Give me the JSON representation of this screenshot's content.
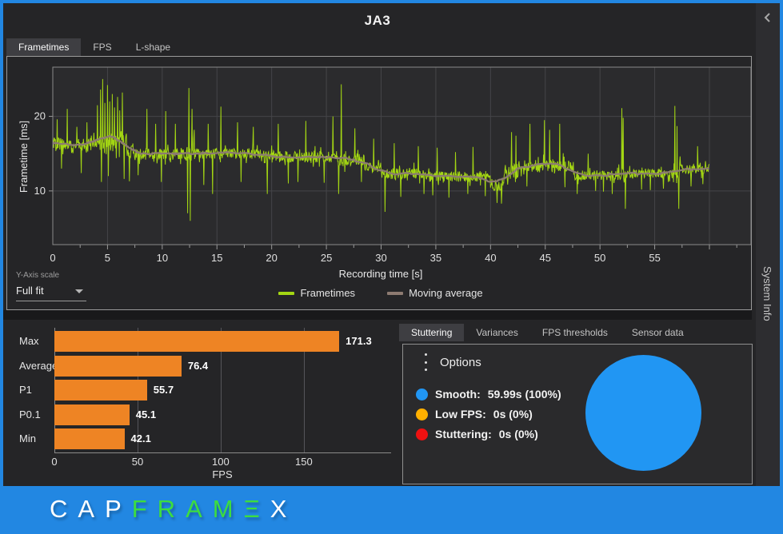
{
  "window": {
    "title": "JA3"
  },
  "top_tabs": {
    "items": [
      {
        "label": "Frametimes",
        "active": true
      },
      {
        "label": "FPS",
        "active": false
      },
      {
        "label": "L-shape",
        "active": false
      }
    ]
  },
  "yaxis_scale": {
    "label": "Y-Axis scale",
    "value": "Full fit"
  },
  "right_panel": {
    "tabs": [
      {
        "label": "Stuttering",
        "active": true
      },
      {
        "label": "Variances",
        "active": false
      },
      {
        "label": "FPS thresholds",
        "active": false
      },
      {
        "label": "Sensor data",
        "active": false
      }
    ],
    "options": {
      "title": "Options",
      "legend": [
        {
          "label": "Smooth:",
          "value": "59.99s (100%)",
          "color": "#2196f3"
        },
        {
          "label": "Low FPS:",
          "value": "0s (0%)",
          "color": "#ffb000"
        },
        {
          "label": "Stuttering:",
          "value": "0s (0%)",
          "color": "#ee1111"
        }
      ]
    }
  },
  "sidebar": {
    "label": "System Info"
  },
  "footer": {
    "logo_parts": [
      {
        "text": "CAP",
        "color": "#ffffff"
      },
      {
        "text": "FRAM",
        "color": "#3ddd3f"
      },
      {
        "text": "Ξ",
        "color": "#3ddd3f"
      },
      {
        "text": "X",
        "color": "#ffffff"
      }
    ]
  },
  "chart_data": [
    {
      "type": "line",
      "xlabel": "Recording time [s]",
      "ylabel": "Frametime [ms]",
      "xlim": [
        0,
        63.8
      ],
      "ylim": [
        2.8,
        26.6
      ],
      "xticks": [
        0,
        5,
        10,
        15,
        20,
        25,
        30,
        35,
        40,
        45,
        50,
        55
      ],
      "yticks": [
        10,
        20
      ],
      "grid": true,
      "legend_position": "bottom",
      "legend": [
        {
          "name": "Frametimes",
          "color": "#a3d613"
        },
        {
          "name": "Moving average",
          "color": "#8d7b71"
        }
      ],
      "series_model": {
        "duration": 59.99,
        "dt": 0.04,
        "ma_window": 31,
        "segments": [
          [
            3.5,
            16.2,
            0.9
          ],
          [
            6.8,
            16.6,
            1.3
          ],
          [
            7.3,
            15.3,
            0.8
          ],
          [
            12.2,
            14.9,
            0.8
          ],
          [
            13.0,
            15.2,
            1.1
          ],
          [
            19.0,
            15.0,
            0.7
          ],
          [
            26.0,
            14.6,
            0.8
          ],
          [
            28.5,
            14.2,
            0.9
          ],
          [
            30.0,
            13.0,
            0.8
          ],
          [
            34.0,
            12.3,
            0.8
          ],
          [
            40.0,
            11.9,
            0.7
          ],
          [
            41.2,
            10.7,
            0.7
          ],
          [
            42.6,
            12.6,
            1.0
          ],
          [
            47.6,
            13.4,
            0.9
          ],
          [
            51.6,
            12.1,
            0.7
          ],
          [
            52.4,
            12.4,
            1.2
          ],
          [
            56.6,
            12.3,
            0.6
          ],
          [
            57.4,
            12.6,
            1.1
          ],
          [
            60.1,
            12.9,
            0.7
          ]
        ],
        "spikes": [
          [
            0.4,
            19.6
          ],
          [
            0.8,
            13.0
          ],
          [
            1.3,
            21.0
          ],
          [
            2.2,
            18.6
          ],
          [
            2.6,
            12.4
          ],
          [
            3.1,
            19.2
          ],
          [
            4.1,
            21.5
          ],
          [
            4.35,
            23.6
          ],
          [
            4.45,
            11.2
          ],
          [
            4.55,
            25.0
          ],
          [
            4.75,
            21.8
          ],
          [
            5.0,
            24.2
          ],
          [
            5.1,
            12.0
          ],
          [
            5.2,
            22.0
          ],
          [
            5.45,
            23.0
          ],
          [
            5.65,
            21.2
          ],
          [
            5.9,
            22.6
          ],
          [
            6.1,
            20.8
          ],
          [
            6.35,
            23.2
          ],
          [
            6.5,
            11.6
          ],
          [
            7.0,
            11.3
          ],
          [
            7.8,
            12.1
          ],
          [
            8.6,
            21.0
          ],
          [
            9.4,
            19.0
          ],
          [
            9.9,
            11.2
          ],
          [
            10.3,
            20.7
          ],
          [
            11.2,
            19.0
          ],
          [
            12.3,
            7.0
          ],
          [
            12.45,
            23.8
          ],
          [
            12.55,
            6.0
          ],
          [
            12.7,
            21.0
          ],
          [
            12.9,
            18.2
          ],
          [
            13.8,
            10.8
          ],
          [
            14.2,
            19.0
          ],
          [
            14.6,
            9.6
          ],
          [
            15.35,
            21.3
          ],
          [
            16.9,
            19.2
          ],
          [
            17.2,
            11.2
          ],
          [
            18.3,
            18.6
          ],
          [
            19.6,
            9.6
          ],
          [
            20.6,
            19.0
          ],
          [
            21.5,
            11.0
          ],
          [
            22.4,
            11.2
          ],
          [
            23.1,
            19.4
          ],
          [
            24.8,
            11.1
          ],
          [
            25.6,
            20.0
          ],
          [
            26.1,
            9.6
          ],
          [
            26.35,
            24.3
          ],
          [
            27.6,
            18.4
          ],
          [
            28.2,
            11.2
          ],
          [
            29.3,
            17.0
          ],
          [
            30.35,
            7.2
          ],
          [
            31.2,
            16.4
          ],
          [
            31.8,
            9.2
          ],
          [
            33.4,
            16.0
          ],
          [
            33.9,
            9.6
          ],
          [
            34.7,
            9.4
          ],
          [
            35.1,
            15.8
          ],
          [
            36.2,
            9.1
          ],
          [
            36.8,
            15.2
          ],
          [
            37.9,
            9.6
          ],
          [
            38.4,
            15.9
          ],
          [
            39.5,
            9.3
          ],
          [
            40.6,
            8.4
          ],
          [
            41.0,
            8.3
          ],
          [
            41.9,
            17.9
          ],
          [
            42.3,
            17.4
          ],
          [
            43.3,
            10.6
          ],
          [
            43.6,
            19.0
          ],
          [
            44.9,
            19.5
          ],
          [
            45.4,
            18.2
          ],
          [
            46.3,
            19.0
          ],
          [
            46.8,
            10.5
          ],
          [
            47.9,
            9.6
          ],
          [
            48.9,
            15.0
          ],
          [
            49.6,
            10.0
          ],
          [
            50.3,
            9.9
          ],
          [
            51.1,
            9.6
          ],
          [
            52.0,
            21.1
          ],
          [
            52.12,
            19.8
          ],
          [
            52.3,
            7.6
          ],
          [
            53.8,
            10.2
          ],
          [
            54.6,
            10.1
          ],
          [
            55.8,
            10.3
          ],
          [
            56.85,
            21.4
          ],
          [
            57.05,
            18.7
          ],
          [
            57.2,
            7.6
          ],
          [
            58.3,
            10.6
          ],
          [
            58.9,
            16.0
          ],
          [
            59.4,
            10.9
          ]
        ]
      }
    },
    {
      "type": "bar",
      "orientation": "horizontal",
      "categories": [
        "Max",
        "Average",
        "P1",
        "P0.1",
        "Min"
      ],
      "values": [
        171.3,
        76.4,
        55.7,
        45.1,
        42.1
      ],
      "xlabel": "FPS",
      "xticks": [
        0,
        50,
        100,
        150
      ],
      "xlim": [
        0,
        202
      ],
      "bar_color": "#ee8424",
      "grid": true
    },
    {
      "type": "pie",
      "slices": [
        {
          "label": "Smooth",
          "seconds": 59.99,
          "percent": 100,
          "color": "#2196f3"
        },
        {
          "label": "Low FPS",
          "seconds": 0,
          "percent": 0,
          "color": "#ffb000"
        },
        {
          "label": "Stuttering",
          "seconds": 0,
          "percent": 0,
          "color": "#ee1111"
        }
      ]
    }
  ]
}
